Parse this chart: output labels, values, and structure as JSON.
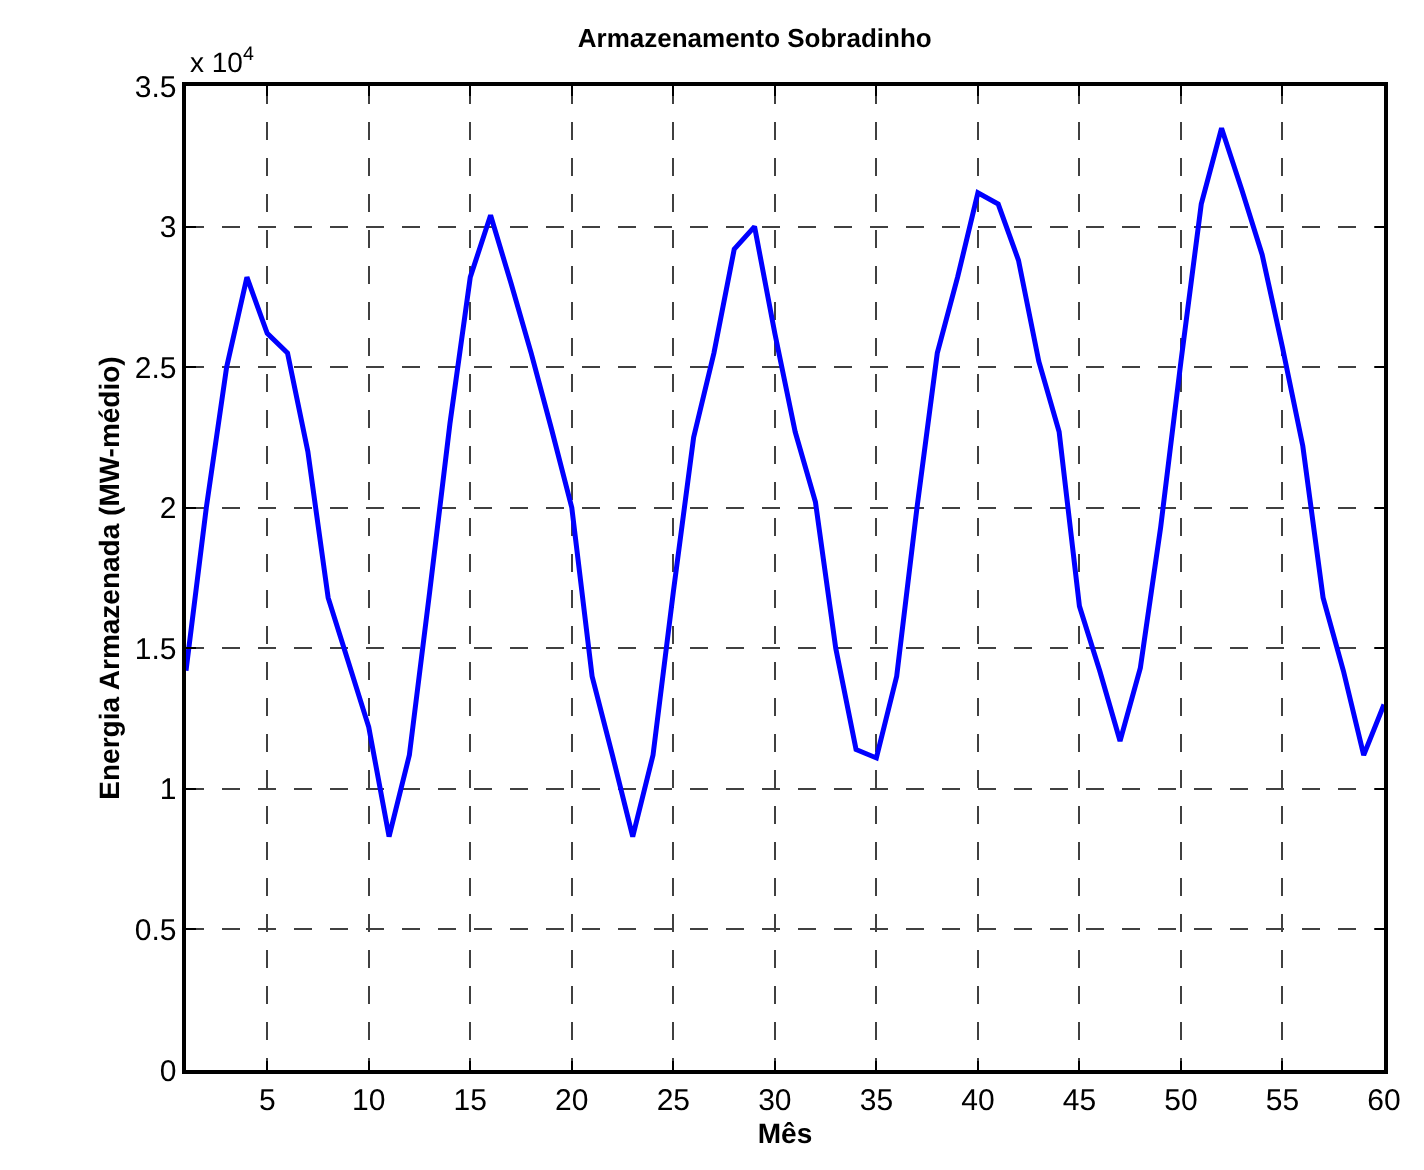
{
  "chart_data": {
    "type": "line",
    "title": "Armazenamento Sobradinho",
    "xlabel": "Mês",
    "ylabel": "Energia Armazenada (MW-médio)",
    "annotations": [
      "x 10$^{4}$"
    ],
    "x": [
      1,
      2,
      3,
      4,
      5,
      6,
      7,
      8,
      9,
      10,
      11,
      12,
      13,
      14,
      15,
      16,
      17,
      18,
      19,
      20,
      21,
      22,
      23,
      24,
      25,
      26,
      27,
      28,
      29,
      30,
      31,
      32,
      33,
      34,
      35,
      36,
      37,
      38,
      39,
      40,
      41,
      42,
      43,
      44,
      45,
      46,
      47,
      48,
      49,
      50,
      51,
      52,
      53,
      54,
      55,
      56,
      57,
      58,
      59,
      60
    ],
    "series": [
      {
        "color": "#0000ff",
        "values": [
          1.42,
          2.0,
          2.5,
          2.82,
          2.62,
          2.55,
          2.2,
          1.68,
          1.45,
          1.22,
          0.83,
          1.12,
          1.7,
          2.3,
          2.82,
          3.04,
          2.8,
          2.55,
          2.28,
          2.0,
          1.4,
          1.12,
          0.83,
          1.12,
          1.7,
          2.25,
          2.55,
          2.92,
          3.0,
          2.62,
          2.27,
          2.02,
          1.5,
          1.14,
          1.11,
          1.4,
          2.0,
          2.55,
          2.82,
          3.12,
          3.08,
          2.88,
          2.52,
          2.27,
          1.65,
          1.42,
          1.17,
          1.43,
          1.93,
          2.52,
          3.08,
          3.35,
          3.13,
          2.9,
          2.57,
          2.22,
          1.68,
          1.42,
          1.12,
          1.3
        ]
      }
    ],
    "xlim": [
      1,
      60
    ],
    "xticks": [
      5,
      10,
      15,
      20,
      25,
      30,
      35,
      40,
      45,
      50,
      55,
      60
    ],
    "ylim": [
      0,
      3.5
    ],
    "yticks": [
      0,
      0.5,
      1,
      1.5,
      2,
      2.5,
      3,
      3.5
    ],
    "grid": true,
    "line_style": "solid",
    "marker": "none"
  }
}
